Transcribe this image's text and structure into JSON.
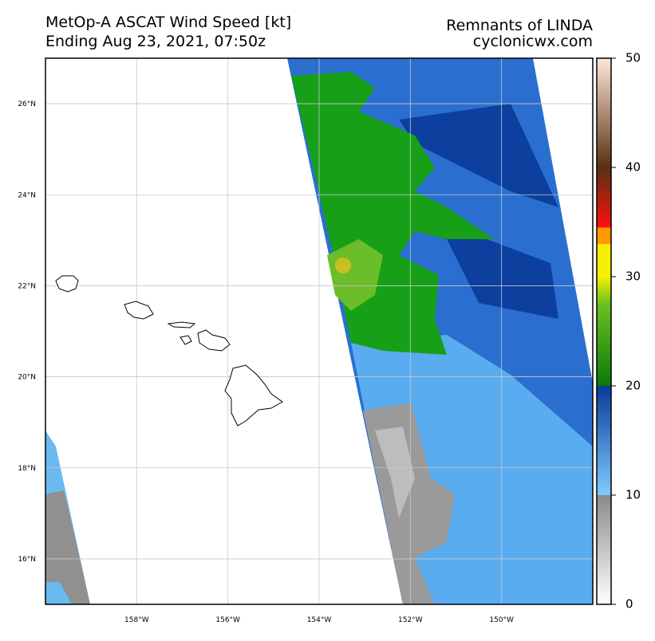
{
  "header": {
    "title": "MetOp-A ASCAT Wind Speed [kt]",
    "subtitle": "Ending Aug 23, 2021, 07:50z",
    "storm": "Remnants of LINDA",
    "source": "cyclonicwx.com"
  },
  "map": {
    "xlim": [
      -160,
      -148
    ],
    "ylim": [
      15,
      27
    ],
    "xticks": [
      {
        "value": -158,
        "label": "158°W"
      },
      {
        "value": -156,
        "label": "156°W"
      },
      {
        "value": -154,
        "label": "154°W"
      },
      {
        "value": -152,
        "label": "152°W"
      },
      {
        "value": -150,
        "label": "150°W"
      }
    ],
    "yticks": [
      {
        "value": 16,
        "label": "16°N"
      },
      {
        "value": 18,
        "label": "18°N"
      },
      {
        "value": 20,
        "label": "20°N"
      },
      {
        "value": 22,
        "label": "22°N"
      },
      {
        "value": 24,
        "label": "24°N"
      },
      {
        "value": 26,
        "label": "26°N"
      }
    ],
    "grid": true
  },
  "colorbar": {
    "lim": [
      0,
      50
    ],
    "ticks": [
      0,
      10,
      20,
      30,
      40,
      50
    ]
  }
}
